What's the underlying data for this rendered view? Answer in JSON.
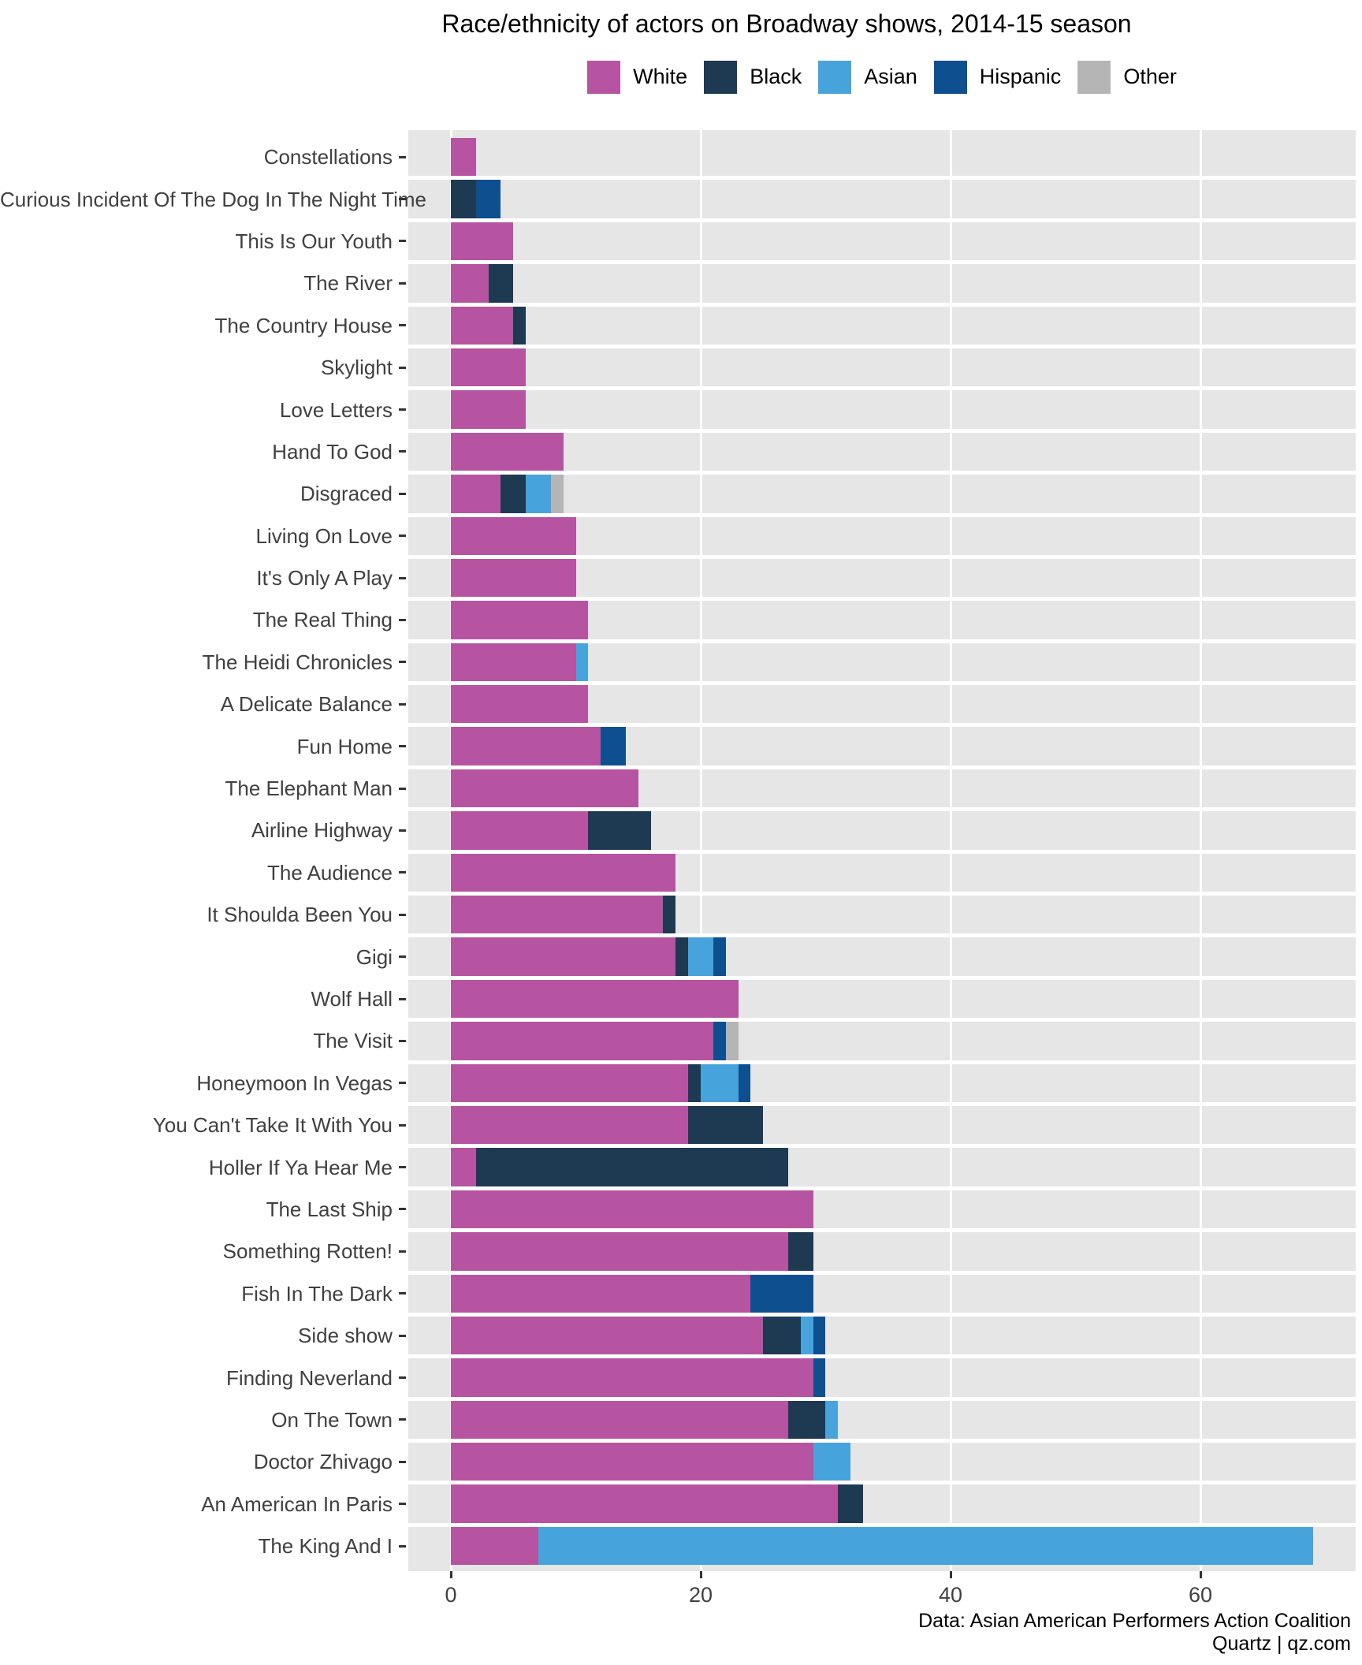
{
  "title": "Race/ethnicity of actors on Broadway shows, 2014-15 season",
  "footer": {
    "source": "Data: Asian American Performers Action Coalition",
    "credit": "Quartz | qz.com"
  },
  "colors": {
    "panel_background": "#e6e6e6",
    "gridline": "#ffffff",
    "axis_text": "#404040",
    "tick_mark": "#333333"
  },
  "chart_data": {
    "type": "bar",
    "orientation": "horizontal",
    "stacked": true,
    "title": "Race/ethnicity of actors on Broadway shows, 2014-15 season",
    "legend_position": "top",
    "grid": "major-x",
    "xlabel": "",
    "ylabel": "",
    "xlim": [
      0,
      72.5
    ],
    "x_ticks": [
      0,
      20,
      40,
      60
    ],
    "categories": [
      "Constellations",
      "Curious Incident Of The Dog In The Night Time",
      "This Is Our Youth",
      "The River",
      "The Country House",
      "Skylight",
      "Love Letters",
      "Hand To God",
      "Disgraced",
      "Living On Love",
      "It's Only A Play",
      "The Real Thing",
      "The Heidi Chronicles",
      "A Delicate Balance",
      "Fun Home",
      "The Elephant Man",
      "Airline Highway",
      "The Audience",
      "It Shoulda Been You",
      "Gigi",
      "Wolf Hall",
      "The Visit",
      "Honeymoon In Vegas",
      "You Can't Take It With You",
      "Holler If Ya Hear Me",
      "The Last Ship",
      "Something Rotten!",
      "Fish In The Dark",
      "Side show",
      "Finding Neverland",
      "On The Town",
      "Doctor Zhivago",
      "An American In Paris",
      "The King And I"
    ],
    "series": [
      {
        "name": "White",
        "color": "#b654a1",
        "values": [
          2,
          0,
          5,
          3,
          5,
          6,
          6,
          9,
          4,
          10,
          10,
          11,
          10,
          11,
          12,
          15,
          11,
          18,
          17,
          18,
          23,
          21,
          19,
          19,
          2,
          29,
          27,
          24,
          25,
          29,
          27,
          29,
          31,
          7
        ]
      },
      {
        "name": "Black",
        "color": "#1e3a52",
        "values": [
          0,
          2,
          0,
          2,
          1,
          0,
          0,
          0,
          2,
          0,
          0,
          0,
          0,
          0,
          0,
          0,
          5,
          0,
          1,
          1,
          0,
          0,
          1,
          6,
          25,
          0,
          2,
          0,
          3,
          0,
          3,
          0,
          2,
          0
        ]
      },
      {
        "name": "Asian",
        "color": "#47a3dc",
        "values": [
          0,
          0,
          0,
          0,
          0,
          0,
          0,
          0,
          2,
          0,
          0,
          0,
          1,
          0,
          0,
          0,
          0,
          0,
          0,
          2,
          0,
          0,
          3,
          0,
          0,
          0,
          0,
          0,
          1,
          0,
          1,
          3,
          0,
          62
        ]
      },
      {
        "name": "Hispanic",
        "color": "#0e4f90",
        "values": [
          0,
          2,
          0,
          0,
          0,
          0,
          0,
          0,
          0,
          0,
          0,
          0,
          0,
          0,
          2,
          0,
          0,
          0,
          0,
          1,
          0,
          1,
          1,
          0,
          0,
          0,
          0,
          5,
          1,
          1,
          0,
          0,
          0,
          0
        ]
      },
      {
        "name": "Other",
        "color": "#b5b5b5",
        "values": [
          0,
          0,
          0,
          0,
          0,
          0,
          0,
          0,
          1,
          0,
          0,
          0,
          0,
          0,
          0,
          0,
          0,
          0,
          0,
          0,
          0,
          1,
          0,
          0,
          0,
          0,
          0,
          0,
          0,
          0,
          0,
          0,
          0,
          0
        ]
      }
    ]
  }
}
